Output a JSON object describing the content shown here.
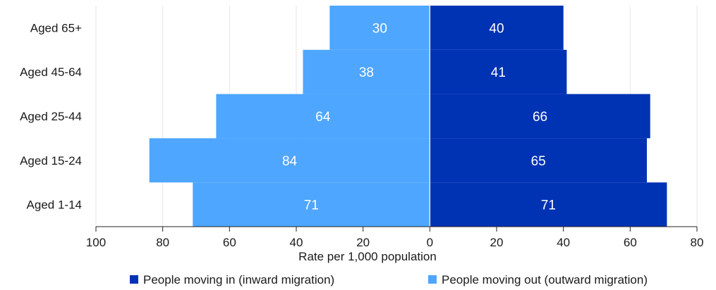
{
  "chart_data": {
    "type": "bar",
    "orientation": "horizontal",
    "layout": "population-pyramid",
    "categories": [
      "Aged 65+",
      "Aged 45-64",
      "Aged 25-44",
      "Aged 15-24",
      "Aged 1-14"
    ],
    "series": [
      {
        "name": "People moving in (inward migration)",
        "side": "right",
        "color": "#0032b4",
        "values": [
          40,
          41,
          66,
          65,
          71
        ]
      },
      {
        "name": "People moving out (outward migration)",
        "side": "left",
        "color": "#4ea6ff",
        "values": [
          30,
          38,
          64,
          84,
          71
        ]
      }
    ],
    "xlabel": "Rate per 1,000 population",
    "xlim": [
      -100,
      80
    ],
    "x_ticks": [
      -100,
      -80,
      -60,
      -40,
      -20,
      0,
      20,
      40,
      60,
      80
    ],
    "x_tick_labels": [
      "100",
      "80",
      "60",
      "40",
      "20",
      "0",
      "20",
      "40",
      "60",
      "80"
    ],
    "grid": "vertical",
    "legend_position": "bottom"
  }
}
